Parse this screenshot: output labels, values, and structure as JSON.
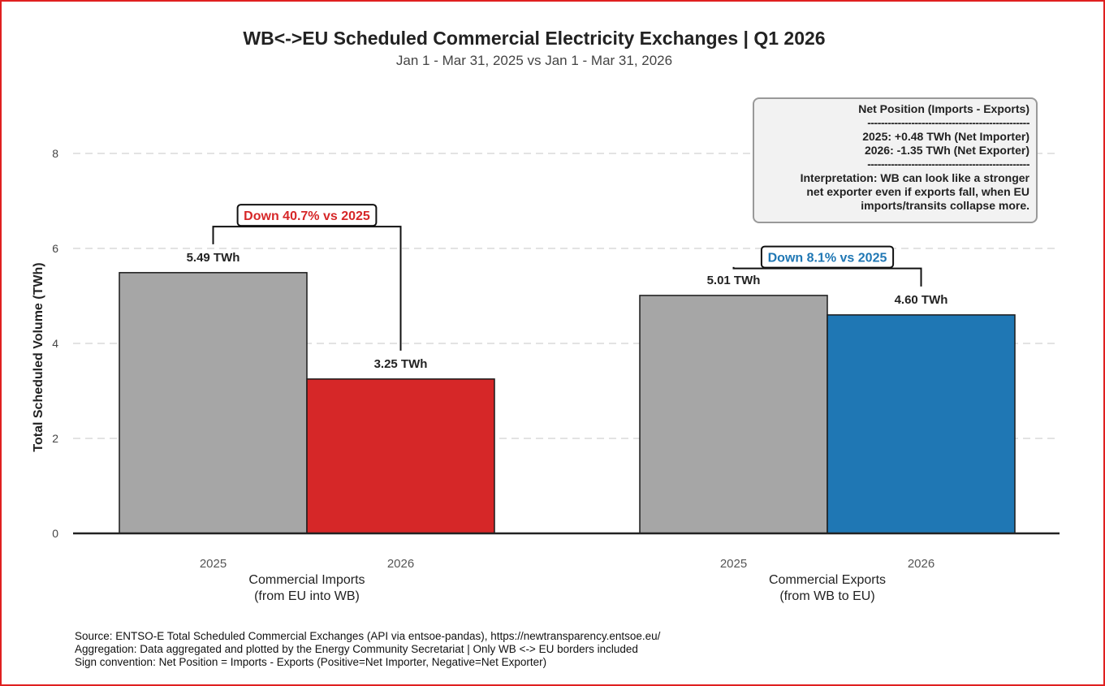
{
  "chart_data": {
    "type": "bar",
    "title": "WB<->EU Scheduled Commercial Electricity Exchanges | Q1 2026",
    "subtitle": "Jan 1 - Mar 31, 2025 vs Jan 1 - Mar 31, 2026",
    "ylabel": "Total Scheduled Volume (TWh)",
    "ylim": [
      0,
      8.6
    ],
    "yticks": [
      0,
      2,
      4,
      6,
      8
    ],
    "grid": "horizontal dashed",
    "groups": [
      {
        "label_line1": "Commercial Imports",
        "label_line2": "(from EU into WB)",
        "bars": [
          {
            "year": "2025",
            "value": 5.49,
            "label": "5.49 TWh",
            "color": "#a6a6a6"
          },
          {
            "year": "2026",
            "value": 3.25,
            "label": "3.25 TWh",
            "color": "#d62728"
          }
        ],
        "change_label": "Down 40.7% vs 2025",
        "change_color": "#d62728"
      },
      {
        "label_line1": "Commercial Exports",
        "label_line2": "(from WB to EU)",
        "bars": [
          {
            "year": "2025",
            "value": 5.01,
            "label": "5.01 TWh",
            "color": "#a6a6a6"
          },
          {
            "year": "2026",
            "value": 4.6,
            "label": "4.60 TWh",
            "color": "#1f77b4"
          }
        ],
        "change_label": "Down 8.1% vs 2025",
        "change_color": "#1f77b4"
      }
    ]
  },
  "net_position": {
    "title": "Net Position (Imports - Exports)",
    "divider": "------------------------------------------------",
    "line_2025": "2025: +0.48 TWh (Net Importer)",
    "line_2026": "2026: -1.35 TWh (Net Exporter)",
    "interp1": "Interpretation: WB can look like a stronger",
    "interp2": "net exporter even if exports fall, when EU",
    "interp3": "imports/transits collapse more."
  },
  "notes": {
    "source": "Source: ENTSO-E Total Scheduled Commercial Exchanges (API via entsoe-pandas), https://newtransparency.entsoe.eu/",
    "aggregation": "Aggregation: Data aggregated and plotted by the Energy Community Secretariat | Only WB <-> EU borders included",
    "sign": "Sign convention: Net Position = Imports - Exports (Positive=Net Importer, Negative=Net Exporter)"
  }
}
